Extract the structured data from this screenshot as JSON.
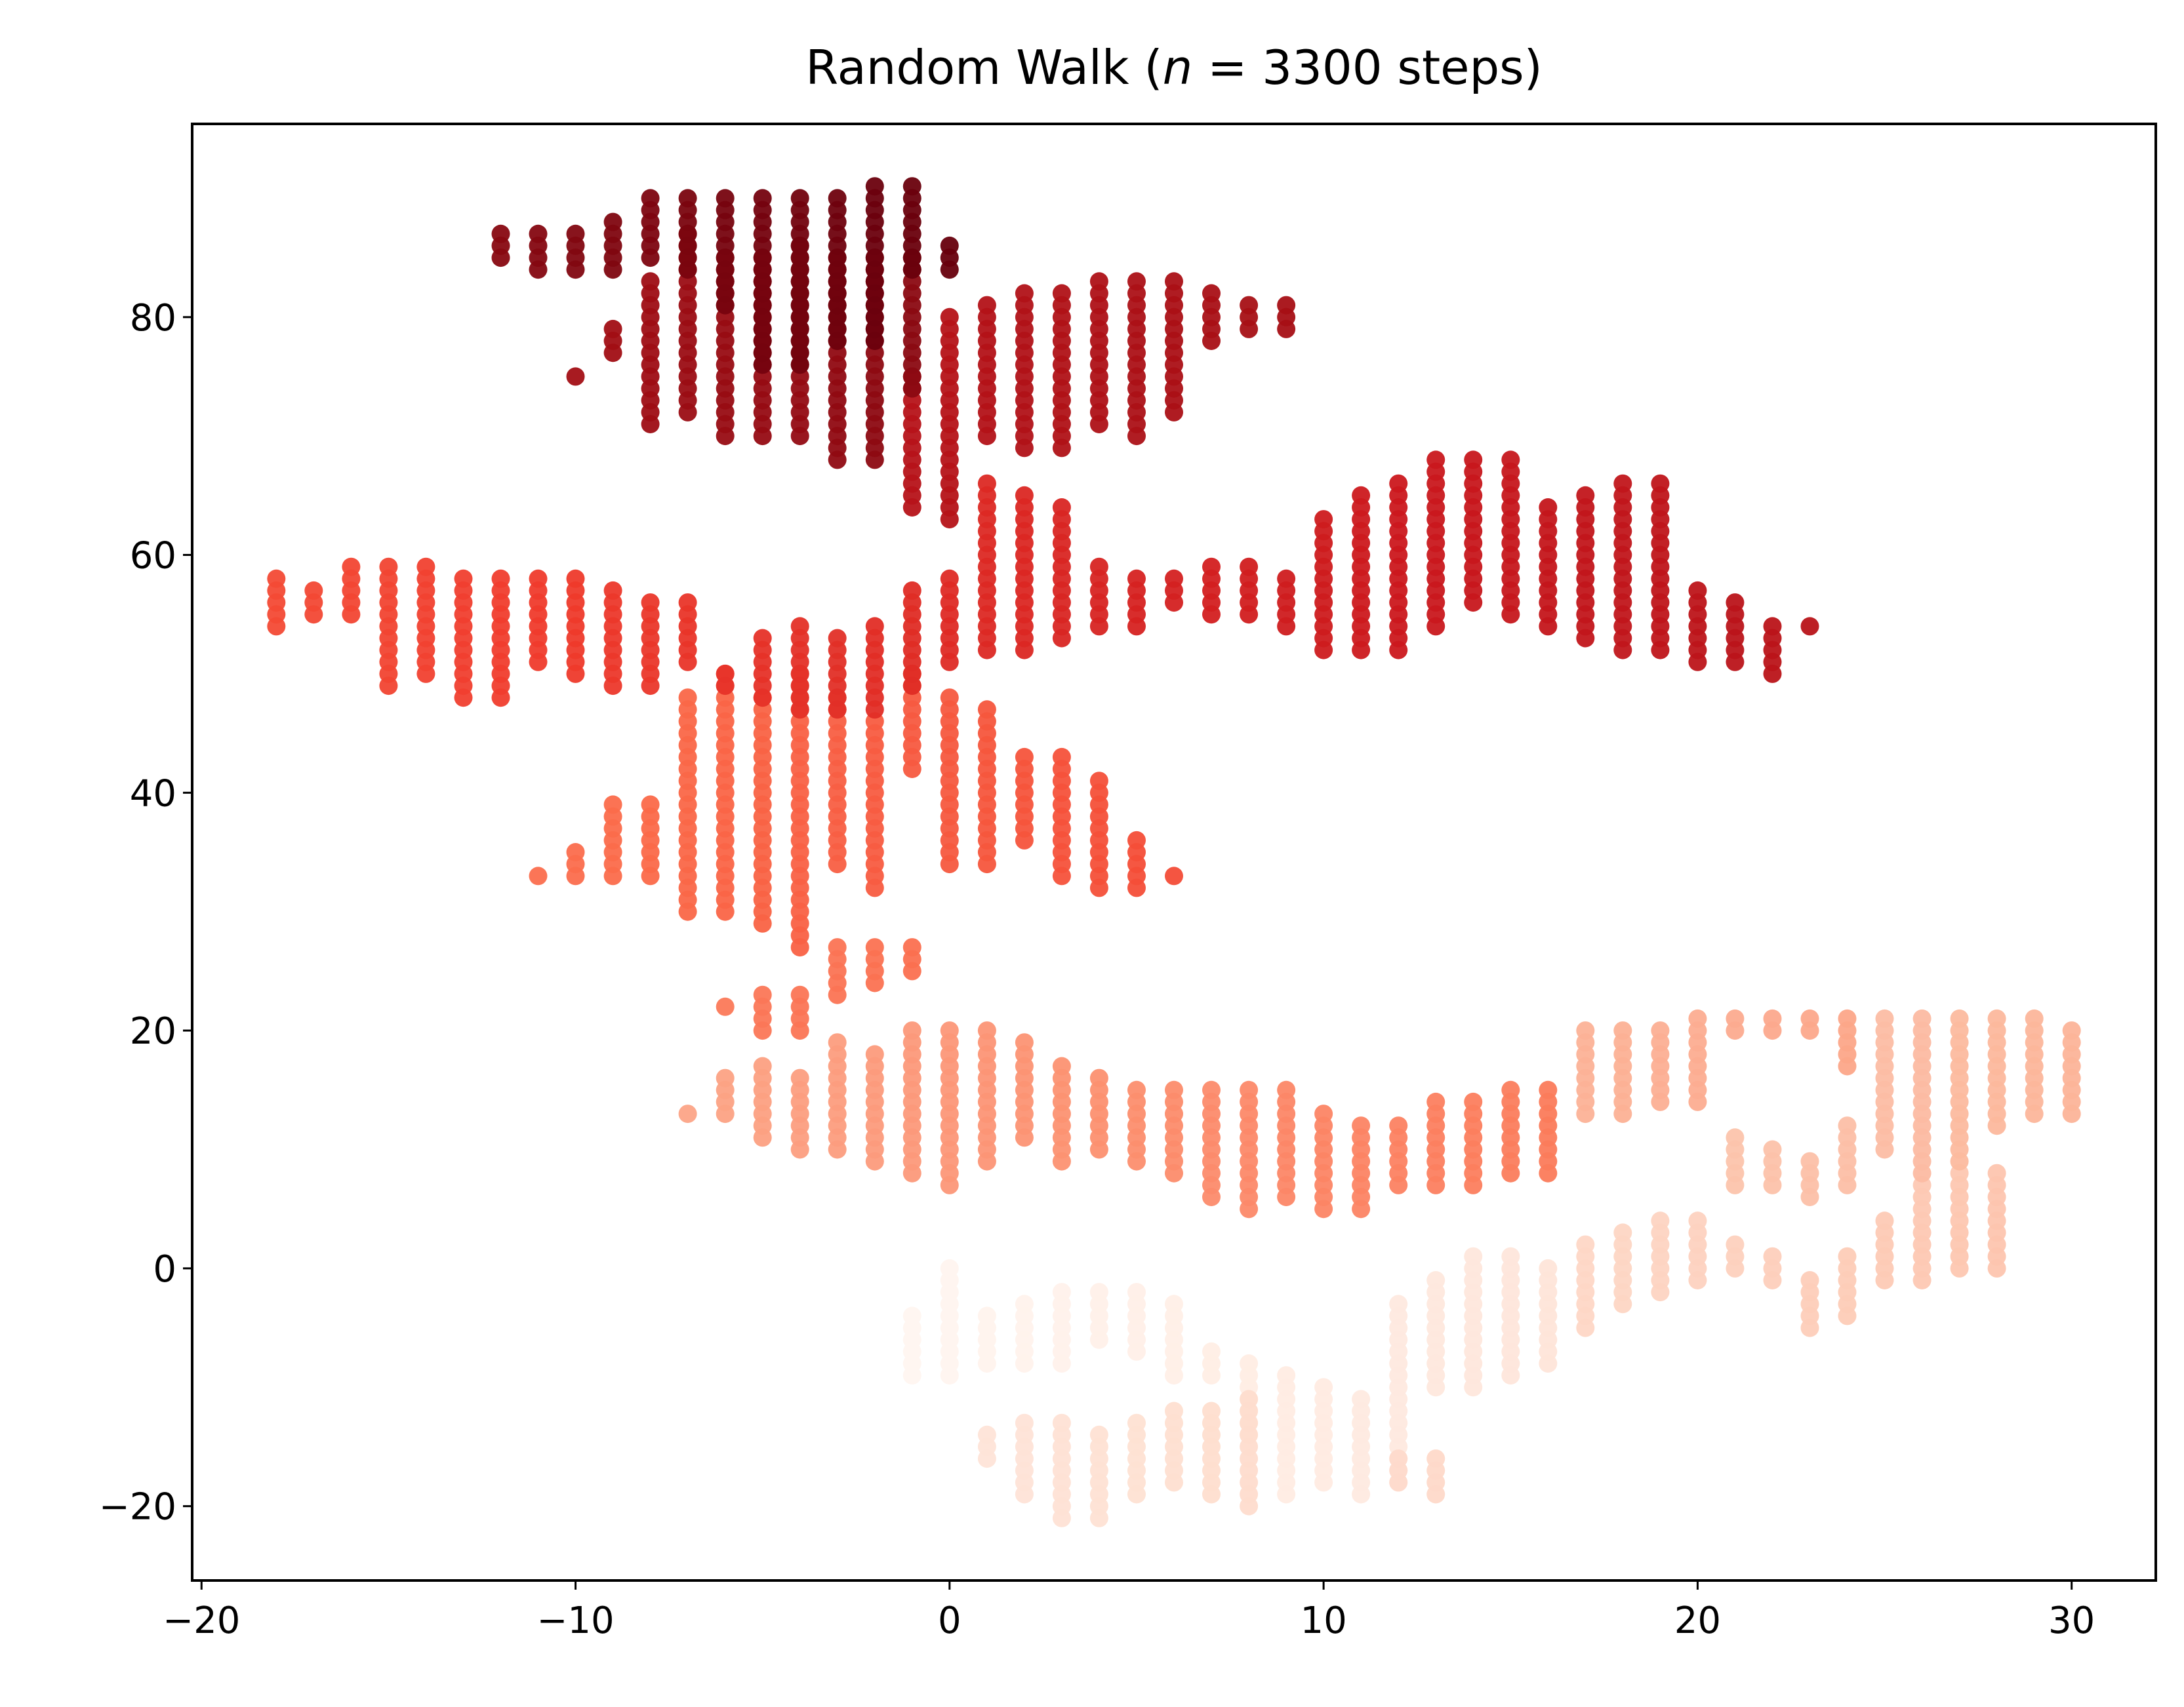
{
  "chart_data": {
    "type": "scatter",
    "title": "Random Walk (n = 3300 steps)",
    "title_parts": {
      "prefix": "Random Walk (",
      "var": "n",
      "rest": " = 3300 steps)"
    },
    "xlabel": "",
    "ylabel": "",
    "xlim": [
      -20.25,
      32.25
    ],
    "ylim": [
      -26.25,
      96.25
    ],
    "x_ticks": [
      -20,
      -10,
      0,
      10,
      20,
      30
    ],
    "y_ticks": [
      -20,
      0,
      20,
      40,
      60,
      80
    ],
    "tick_labels_x": [
      "−20",
      "−10",
      "0",
      "10",
      "20",
      "30"
    ],
    "tick_labels_y": [
      "−20",
      "0",
      "20",
      "40",
      "60",
      "80"
    ],
    "grid": false,
    "colormap": "Reds",
    "color_start": "#fff5f0",
    "color_end": "#67000d",
    "color_order": "step index (early = light, late = dark)",
    "columns": [
      {
        "x": -1,
        "y": [
          -9,
          -4
        ]
      },
      {
        "x": 0,
        "y": [
          -9,
          0
        ]
      },
      {
        "x": 1,
        "y": [
          -8,
          -4
        ]
      },
      {
        "x": 2,
        "y": [
          -8,
          -3
        ]
      },
      {
        "x": 3,
        "y": [
          -8,
          -2
        ]
      },
      {
        "x": 4,
        "y": [
          -6,
          -2
        ]
      },
      {
        "x": 5,
        "y": [
          -7,
          -2
        ]
      },
      {
        "x": 6,
        "y": [
          -9,
          -3
        ]
      },
      {
        "x": 7,
        "y": [
          -9,
          -7
        ]
      },
      {
        "x": 8,
        "y": [
          -14,
          -8
        ]
      },
      {
        "x": 9,
        "y": [
          -19,
          -9
        ]
      },
      {
        "x": 10,
        "y": [
          -18,
          -10
        ]
      },
      {
        "x": 11,
        "y": [
          -19,
          -11
        ]
      },
      {
        "x": 12,
        "y": [
          -18,
          -3
        ]
      },
      {
        "x": 13,
        "y": [
          -10,
          -1
        ]
      },
      {
        "x": 14,
        "y": [
          -10,
          1
        ]
      },
      {
        "x": 15,
        "y": [
          -9,
          1
        ]
      },
      {
        "x": 16,
        "y": [
          -8,
          0
        ]
      },
      {
        "x": 1,
        "y": [
          -16,
          -14
        ]
      },
      {
        "x": 2,
        "y": [
          -19,
          -13
        ]
      },
      {
        "x": 3,
        "y": [
          -21,
          -13
        ]
      },
      {
        "x": 4,
        "y": [
          -21,
          -14
        ]
      },
      {
        "x": 5,
        "y": [
          -19,
          -13
        ]
      },
      {
        "x": 6,
        "y": [
          -18,
          -12
        ]
      },
      {
        "x": 7,
        "y": [
          -19,
          -12
        ]
      },
      {
        "x": 8,
        "y": [
          -20,
          -11
        ]
      },
      {
        "x": 12,
        "y": [
          -18,
          -16
        ]
      },
      {
        "x": 13,
        "y": [
          -19,
          -16
        ]
      },
      {
        "x": 17,
        "y": [
          -5,
          2
        ]
      },
      {
        "x": 18,
        "y": [
          -3,
          3
        ]
      },
      {
        "x": 19,
        "y": [
          -2,
          4
        ]
      },
      {
        "x": 20,
        "y": [
          -1,
          4
        ]
      },
      {
        "x": 21,
        "y": [
          0,
          2
        ]
      },
      {
        "x": 22,
        "y": [
          -1,
          1
        ]
      },
      {
        "x": 23,
        "y": [
          -5,
          -1
        ]
      },
      {
        "x": 24,
        "y": [
          -4,
          1
        ]
      },
      {
        "x": 25,
        "y": [
          -1,
          4
        ]
      },
      {
        "x": 26,
        "y": [
          -1,
          7
        ]
      },
      {
        "x": 27,
        "y": [
          0,
          8
        ]
      },
      {
        "x": 28,
        "y": [
          0,
          8
        ]
      },
      {
        "x": 21,
        "y": [
          7,
          11
        ]
      },
      {
        "x": 22,
        "y": [
          7,
          10
        ]
      },
      {
        "x": 23,
        "y": [
          6,
          9
        ]
      },
      {
        "x": 24,
        "y": [
          7,
          12
        ]
      },
      {
        "x": 25,
        "y": [
          10,
          21
        ]
      },
      {
        "x": 26,
        "y": [
          8,
          21
        ]
      },
      {
        "x": 27,
        "y": [
          9,
          21
        ]
      },
      {
        "x": 28,
        "y": [
          12,
          21
        ]
      },
      {
        "x": 29,
        "y": [
          13,
          21
        ]
      },
      {
        "x": 30,
        "y": [
          13,
          20
        ]
      },
      {
        "x": 17,
        "y": [
          13,
          20
        ]
      },
      {
        "x": 18,
        "y": [
          13,
          20
        ]
      },
      {
        "x": 19,
        "y": [
          14,
          20
        ]
      },
      {
        "x": 20,
        "y": [
          14,
          21
        ]
      },
      {
        "x": 21,
        "y": [
          20,
          21
        ]
      },
      {
        "x": 22,
        "y": [
          20,
          21
        ]
      },
      {
        "x": 23,
        "y": [
          20,
          21
        ]
      },
      {
        "x": 24,
        "y": [
          17,
          21
        ]
      },
      {
        "x": -7,
        "y": [
          13,
          13
        ]
      },
      {
        "x": -6,
        "y": [
          13,
          16
        ]
      },
      {
        "x": -5,
        "y": [
          11,
          17
        ]
      },
      {
        "x": -4,
        "y": [
          10,
          16
        ]
      },
      {
        "x": -3,
        "y": [
          10,
          19
        ]
      },
      {
        "x": -2,
        "y": [
          9,
          18
        ]
      },
      {
        "x": -1,
        "y": [
          8,
          20
        ]
      },
      {
        "x": 0,
        "y": [
          7,
          20
        ]
      },
      {
        "x": 1,
        "y": [
          9,
          20
        ]
      },
      {
        "x": 2,
        "y": [
          11,
          19
        ]
      },
      {
        "x": 3,
        "y": [
          9,
          17
        ]
      },
      {
        "x": 4,
        "y": [
          10,
          16
        ]
      },
      {
        "x": 5,
        "y": [
          9,
          15
        ]
      },
      {
        "x": 6,
        "y": [
          8,
          15
        ]
      },
      {
        "x": 7,
        "y": [
          6,
          15
        ]
      },
      {
        "x": 8,
        "y": [
          5,
          15
        ]
      },
      {
        "x": 9,
        "y": [
          6,
          15
        ]
      },
      {
        "x": 10,
        "y": [
          5,
          13
        ]
      },
      {
        "x": 11,
        "y": [
          5,
          12
        ]
      },
      {
        "x": 12,
        "y": [
          7,
          12
        ]
      },
      {
        "x": 13,
        "y": [
          7,
          14
        ]
      },
      {
        "x": 14,
        "y": [
          7,
          14
        ]
      },
      {
        "x": 15,
        "y": [
          8,
          15
        ]
      },
      {
        "x": 16,
        "y": [
          8,
          15
        ]
      },
      {
        "x": -6,
        "y": [
          22,
          22
        ]
      },
      {
        "x": -5,
        "y": [
          20,
          23
        ]
      },
      {
        "x": -4,
        "y": [
          20,
          23
        ]
      },
      {
        "x": -3,
        "y": [
          23,
          27
        ]
      },
      {
        "x": -2,
        "y": [
          24,
          27
        ]
      },
      {
        "x": -1,
        "y": [
          25,
          27
        ]
      },
      {
        "x": -11,
        "y": [
          33,
          33
        ]
      },
      {
        "x": -10,
        "y": [
          33,
          35
        ]
      },
      {
        "x": -9,
        "y": [
          33,
          39
        ]
      },
      {
        "x": -8,
        "y": [
          33,
          39
        ]
      },
      {
        "x": -7,
        "y": [
          30,
          48
        ]
      },
      {
        "x": -6,
        "y": [
          30,
          50
        ]
      },
      {
        "x": -5,
        "y": [
          29,
          48
        ]
      },
      {
        "x": -4,
        "y": [
          27,
          50
        ]
      },
      {
        "x": -3,
        "y": [
          34,
          48
        ]
      },
      {
        "x": -2,
        "y": [
          32,
          46
        ]
      },
      {
        "x": -1,
        "y": [
          42,
          50
        ]
      },
      {
        "x": 0,
        "y": [
          34,
          48
        ]
      },
      {
        "x": 1,
        "y": [
          34,
          47
        ]
      },
      {
        "x": 2,
        "y": [
          36,
          43
        ]
      },
      {
        "x": 3,
        "y": [
          33,
          43
        ]
      },
      {
        "x": 4,
        "y": [
          32,
          41
        ]
      },
      {
        "x": 5,
        "y": [
          32,
          36
        ]
      },
      {
        "x": 6,
        "y": [
          33,
          33
        ]
      },
      {
        "x": -18,
        "y": [
          54,
          58
        ]
      },
      {
        "x": -17,
        "y": [
          55,
          57
        ]
      },
      {
        "x": -16,
        "y": [
          55,
          59
        ]
      },
      {
        "x": -15,
        "y": [
          49,
          59
        ]
      },
      {
        "x": -14,
        "y": [
          50,
          59
        ]
      },
      {
        "x": -13,
        "y": [
          48,
          58
        ]
      },
      {
        "x": -12,
        "y": [
          48,
          58
        ]
      },
      {
        "x": -11,
        "y": [
          51,
          58
        ]
      },
      {
        "x": -10,
        "y": [
          50,
          58
        ]
      },
      {
        "x": -9,
        "y": [
          49,
          57
        ]
      },
      {
        "x": -8,
        "y": [
          49,
          56
        ]
      },
      {
        "x": -7,
        "y": [
          51,
          56
        ]
      },
      {
        "x": -6,
        "y": [
          49,
          50
        ]
      },
      {
        "x": -5,
        "y": [
          48,
          53
        ]
      },
      {
        "x": -4,
        "y": [
          47,
          54
        ]
      },
      {
        "x": -3,
        "y": [
          47,
          53
        ]
      },
      {
        "x": -2,
        "y": [
          47,
          54
        ]
      },
      {
        "x": -1,
        "y": [
          49,
          57
        ]
      },
      {
        "x": 0,
        "y": [
          51,
          58
        ]
      },
      {
        "x": 1,
        "y": [
          52,
          66
        ]
      },
      {
        "x": 2,
        "y": [
          52,
          65
        ]
      },
      {
        "x": 3,
        "y": [
          53,
          64
        ]
      },
      {
        "x": 4,
        "y": [
          54,
          59
        ]
      },
      {
        "x": 5,
        "y": [
          54,
          58
        ]
      },
      {
        "x": 6,
        "y": [
          56,
          58
        ]
      },
      {
        "x": 7,
        "y": [
          55,
          59
        ]
      },
      {
        "x": 8,
        "y": [
          55,
          59
        ]
      },
      {
        "x": 9,
        "y": [
          54,
          58
        ]
      },
      {
        "x": 10,
        "y": [
          52,
          63
        ]
      },
      {
        "x": 11,
        "y": [
          52,
          65
        ]
      },
      {
        "x": 12,
        "y": [
          52,
          66
        ]
      },
      {
        "x": 13,
        "y": [
          54,
          68
        ]
      },
      {
        "x": 14,
        "y": [
          56,
          68
        ]
      },
      {
        "x": 15,
        "y": [
          55,
          68
        ]
      },
      {
        "x": 16,
        "y": [
          54,
          64
        ]
      },
      {
        "x": 17,
        "y": [
          53,
          65
        ]
      },
      {
        "x": 18,
        "y": [
          52,
          66
        ]
      },
      {
        "x": 19,
        "y": [
          52,
          66
        ]
      },
      {
        "x": 20,
        "y": [
          51,
          57
        ]
      },
      {
        "x": 21,
        "y": [
          51,
          56
        ]
      },
      {
        "x": 22,
        "y": [
          50,
          54
        ]
      },
      {
        "x": 23,
        "y": [
          54,
          54
        ]
      },
      {
        "x": -1,
        "y": [
          64,
          75
        ]
      },
      {
        "x": 0,
        "y": [
          63,
          80
        ]
      },
      {
        "x": 1,
        "y": [
          70,
          81
        ]
      },
      {
        "x": 2,
        "y": [
          69,
          82
        ]
      },
      {
        "x": 3,
        "y": [
          69,
          82
        ]
      },
      {
        "x": 4,
        "y": [
          71,
          83
        ]
      },
      {
        "x": 5,
        "y": [
          70,
          83
        ]
      },
      {
        "x": 6,
        "y": [
          72,
          83
        ]
      },
      {
        "x": 7,
        "y": [
          78,
          82
        ]
      },
      {
        "x": 8,
        "y": [
          79,
          81
        ]
      },
      {
        "x": 9,
        "y": [
          79,
          81
        ]
      },
      {
        "x": -10,
        "y": [
          75,
          75
        ]
      },
      {
        "x": -9,
        "y": [
          77,
          79
        ]
      },
      {
        "x": -8,
        "y": [
          71,
          83
        ]
      },
      {
        "x": -7,
        "y": [
          72,
          87
        ]
      },
      {
        "x": -6,
        "y": [
          70,
          85
        ]
      },
      {
        "x": -5,
        "y": [
          70,
          85
        ]
      },
      {
        "x": -4,
        "y": [
          70,
          86
        ]
      },
      {
        "x": -3,
        "y": [
          68,
          85
        ]
      },
      {
        "x": -2,
        "y": [
          68,
          85
        ]
      },
      {
        "x": -1,
        "y": [
          74,
          85
        ]
      },
      {
        "x": -12,
        "y": [
          85,
          87
        ]
      },
      {
        "x": -11,
        "y": [
          84,
          87
        ]
      },
      {
        "x": -10,
        "y": [
          84,
          87
        ]
      },
      {
        "x": -9,
        "y": [
          84,
          88
        ]
      },
      {
        "x": -8,
        "y": [
          85,
          90
        ]
      },
      {
        "x": -7,
        "y": [
          84,
          90
        ]
      },
      {
        "x": -6,
        "y": [
          81,
          90
        ]
      },
      {
        "x": -5,
        "y": [
          76,
          90
        ]
      },
      {
        "x": -4,
        "y": [
          76,
          90
        ]
      },
      {
        "x": -3,
        "y": [
          78,
          90
        ]
      },
      {
        "x": -2,
        "y": [
          78,
          91
        ]
      },
      {
        "x": -1,
        "y": [
          84,
          91
        ]
      },
      {
        "x": 0,
        "y": [
          84,
          86
        ]
      }
    ]
  }
}
